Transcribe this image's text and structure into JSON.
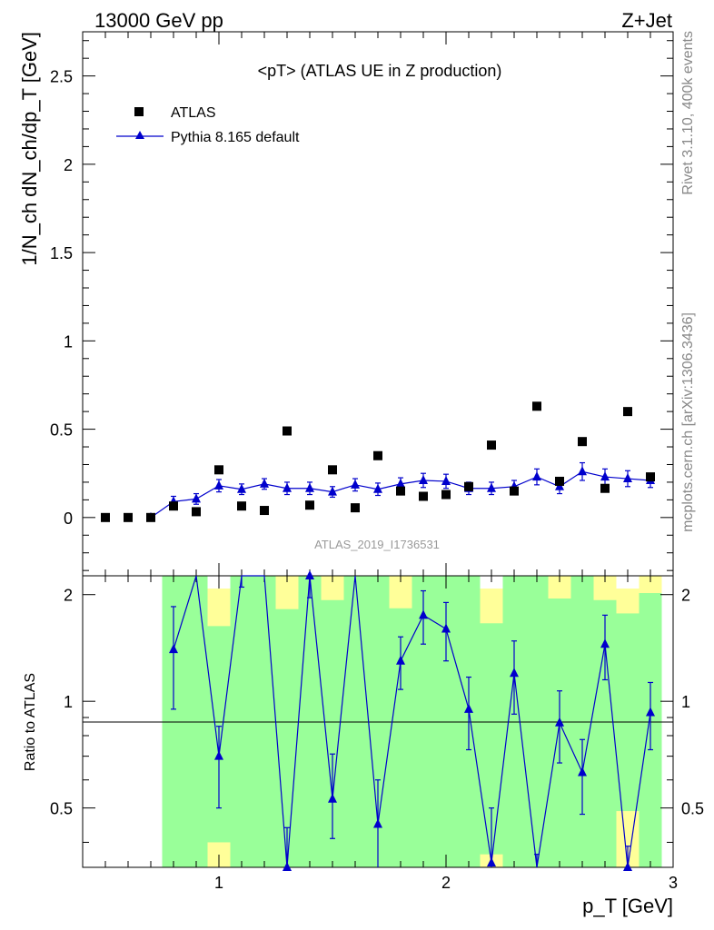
{
  "header": {
    "left": "13000 GeV pp",
    "right": "Z+Jet"
  },
  "side_labels": {
    "rivet": "Rivet 3.1.10,  400k events",
    "mcplots": "mcplots.cern.ch [arXiv:1306.3436]"
  },
  "chart_data": {
    "type": "scatter",
    "title": "<pT> (ATLAS UE in Z production)",
    "analysis_tag": "ATLAS_2019_I1736531",
    "colors": {
      "data": "#000000",
      "mc": "#0000cc",
      "band_inner": "#99ff99",
      "band_outer": "#ffff99"
    },
    "main": {
      "ylabel": "1/N_ch dN_ch/dp_T [GeV]",
      "ylim": [
        -0.33,
        2.75
      ],
      "yticks": [
        0,
        0.5,
        1,
        1.5,
        2,
        2.5
      ],
      "ytick_labels": [
        "0",
        "0.5",
        "1",
        "1.5",
        "2",
        "2.5"
      ],
      "legend": [
        "ATLAS",
        "Pythia 8.165 default"
      ],
      "legend_position": "top-left"
    },
    "ratio": {
      "ylabel": "Ratio to ATLAS",
      "ylim": [
        0.34,
        2.26
      ],
      "yticks": [
        0.5,
        1,
        2
      ],
      "ytick_labels": [
        "0.5",
        "1",
        "2"
      ]
    },
    "x": {
      "label": "p_T [GeV]",
      "lim": [
        0.4,
        3.0
      ],
      "ticks": [
        1,
        2,
        3
      ],
      "tick_labels": [
        "1",
        "2",
        "3"
      ]
    },
    "series": [
      {
        "name": "ATLAS",
        "x": [
          0.5,
          0.6,
          0.7,
          0.8,
          0.9,
          1.0,
          1.1,
          1.2,
          1.3,
          1.4,
          1.5,
          1.6,
          1.7,
          1.8,
          1.9,
          2.0,
          2.1,
          2.2,
          2.3,
          2.4,
          2.5,
          2.6,
          2.7,
          2.8,
          2.9
        ],
        "y": [
          0.0,
          0.0,
          0.0,
          0.065,
          0.033,
          0.27,
          0.065,
          0.04,
          0.49,
          0.07,
          0.27,
          0.055,
          0.35,
          0.15,
          0.12,
          0.13,
          0.175,
          0.41,
          0.15,
          0.63,
          0.205,
          0.43,
          0.165,
          0.6,
          0.23
        ]
      },
      {
        "name": "Pythia 8.165 default",
        "x": [
          0.7,
          0.8,
          0.9,
          1.0,
          1.1,
          1.2,
          1.3,
          1.4,
          1.5,
          1.6,
          1.7,
          1.8,
          1.9,
          2.0,
          2.1,
          2.2,
          2.3,
          2.4,
          2.5,
          2.6,
          2.7,
          2.8,
          2.9
        ],
        "y": [
          0.0,
          0.09,
          0.105,
          0.18,
          0.16,
          0.19,
          0.165,
          0.165,
          0.145,
          0.185,
          0.16,
          0.19,
          0.21,
          0.205,
          0.165,
          0.165,
          0.175,
          0.23,
          0.175,
          0.26,
          0.23,
          0.22,
          0.21
        ],
        "yerr": [
          0.0,
          0.03,
          0.03,
          0.035,
          0.03,
          0.03,
          0.035,
          0.035,
          0.03,
          0.035,
          0.035,
          0.035,
          0.04,
          0.04,
          0.035,
          0.035,
          0.035,
          0.045,
          0.04,
          0.05,
          0.045,
          0.045,
          0.04
        ]
      },
      {
        "name": "Ratio",
        "x": [
          0.8,
          0.9,
          1.0,
          1.1,
          1.2,
          1.3,
          1.4,
          1.5,
          1.6,
          1.7,
          1.8,
          1.9,
          2.0,
          2.1,
          2.2,
          2.3,
          2.4,
          2.5,
          2.6,
          2.7,
          2.8,
          2.9
        ],
        "y": [
          1.4,
          3.2,
          0.7,
          2.5,
          4.75,
          0.34,
          2.26,
          0.53,
          3.4,
          0.45,
          1.3,
          1.75,
          1.6,
          0.95,
          0.35,
          1.2,
          0.32,
          0.87,
          0.63,
          1.45,
          0.34,
          0.93
        ],
        "yerr_lo": [
          0.45,
          0.6,
          0.2,
          0.4,
          0.6,
          0.1,
          0.3,
          0.12,
          0.5,
          0.12,
          0.22,
          0.3,
          0.3,
          0.22,
          0.05,
          0.28,
          0.05,
          0.2,
          0.15,
          0.3,
          0.05,
          0.2
        ],
        "yerr_hi": [
          0.45,
          0.6,
          0.15,
          0.4,
          0.6,
          0.1,
          0.3,
          0.18,
          0.5,
          0.15,
          0.22,
          0.3,
          0.3,
          0.22,
          0.15,
          0.28,
          0.05,
          0.2,
          0.15,
          0.3,
          0.05,
          0.2
        ]
      }
    ],
    "ratio_bands": {
      "bins": [
        [
          0.75,
          0.85
        ],
        [
          0.85,
          0.95
        ],
        [
          0.95,
          1.05
        ],
        [
          1.05,
          1.15
        ],
        [
          1.15,
          1.25
        ],
        [
          1.25,
          1.35
        ],
        [
          1.35,
          1.45
        ],
        [
          1.45,
          1.55
        ],
        [
          1.55,
          1.65
        ],
        [
          1.65,
          1.75
        ],
        [
          1.75,
          1.85
        ],
        [
          1.85,
          1.95
        ],
        [
          1.95,
          2.05
        ],
        [
          2.05,
          2.15
        ],
        [
          2.15,
          2.25
        ],
        [
          2.25,
          2.35
        ],
        [
          2.35,
          2.45
        ],
        [
          2.45,
          2.55
        ],
        [
          2.55,
          2.65
        ],
        [
          2.65,
          2.75
        ],
        [
          2.75,
          2.85
        ],
        [
          2.85,
          2.95
        ]
      ],
      "inner_lo": [
        0.34,
        0.34,
        0.38,
        0.34,
        0.34,
        0.34,
        0.34,
        0.34,
        0.34,
        0.34,
        0.34,
        0.34,
        0.34,
        0.34,
        0.36,
        0.34,
        0.34,
        0.34,
        0.34,
        0.34,
        0.34,
        0.34
      ],
      "inner_hi": [
        2.26,
        2.26,
        1.63,
        2.26,
        2.26,
        1.82,
        2.26,
        1.93,
        2.26,
        2.26,
        1.83,
        2.26,
        2.26,
        2.26,
        1.66,
        2.26,
        2.26,
        1.95,
        2.26,
        1.93,
        1.77,
        2.02
      ],
      "outer_lo": [
        0.34,
        0.34,
        0.34,
        0.34,
        0.34,
        0.34,
        0.34,
        0.34,
        0.34,
        0.34,
        0.34,
        0.34,
        0.34,
        0.34,
        0.34,
        0.34,
        0.34,
        0.34,
        0.34,
        0.34,
        0.34,
        0.34
      ],
      "outer_hi": [
        2.26,
        2.26,
        2.08,
        2.26,
        2.26,
        2.26,
        2.26,
        2.26,
        2.26,
        2.26,
        2.26,
        2.26,
        2.26,
        2.12,
        2.08,
        2.26,
        2.26,
        2.26,
        2.26,
        2.26,
        2.08,
        2.26
      ],
      "outer_lo_extra": [
        0,
        0,
        0.4,
        0,
        0,
        0,
        0,
        0,
        0,
        0,
        0,
        0,
        0,
        0,
        0.37,
        0,
        0,
        0,
        0,
        0,
        0.49,
        0
      ]
    }
  }
}
